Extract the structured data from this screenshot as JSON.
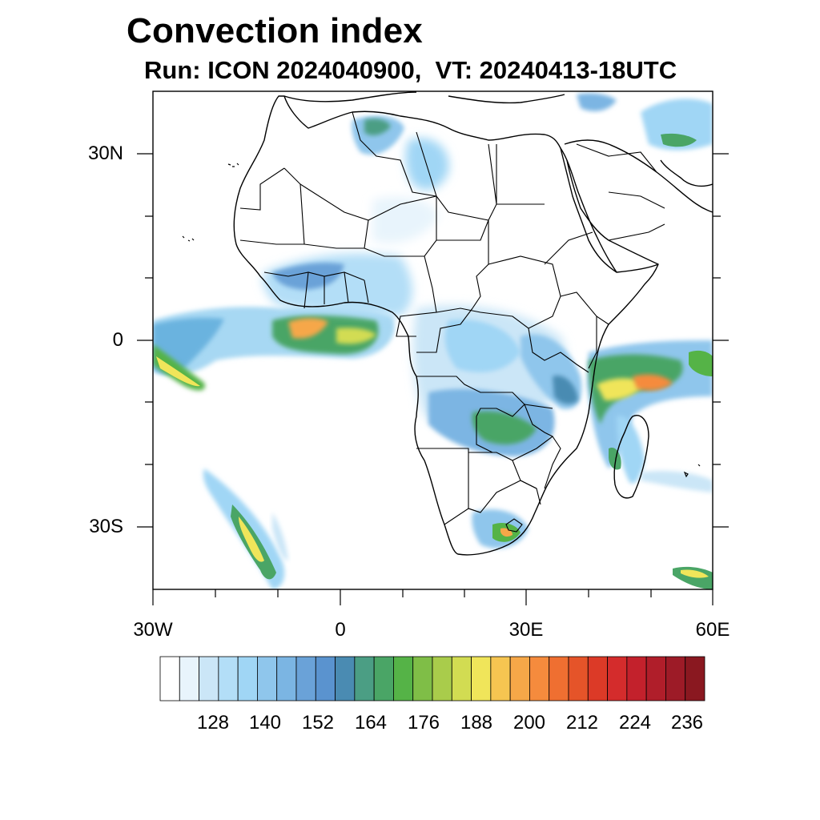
{
  "header": {
    "title": "Convection index",
    "subtitle": "Run: ICON 2024040900,  VT: 20240413-18UTC"
  },
  "map": {
    "lon_range": [
      -30,
      60
    ],
    "lat_range": [
      -40,
      40
    ],
    "lat_ticks": [
      "30N",
      "0",
      "30S"
    ],
    "lon_ticks": [
      "30W",
      "0",
      "30E",
      "60E"
    ]
  },
  "colorbar": {
    "labels": [
      "128",
      "140",
      "152",
      "164",
      "176",
      "188",
      "200",
      "212",
      "224",
      "236"
    ],
    "colors": [
      "#ffffff",
      "#e8f4fc",
      "#cbe6f7",
      "#b3def7",
      "#a0d6f5",
      "#8fc6ec",
      "#7bb5e3",
      "#6aa2d8",
      "#5a93cf",
      "#4a8bb2",
      "#4b9e84",
      "#4aa566",
      "#55b347",
      "#7fbe47",
      "#a9cc4b",
      "#d2dc52",
      "#f0e55a",
      "#f6c551",
      "#f6a748",
      "#f58b3d",
      "#ef6f31",
      "#e55429",
      "#dc3a27",
      "#d42c2c",
      "#c3212c",
      "#b01e2a",
      "#9d1b27",
      "#8a1820"
    ]
  }
}
